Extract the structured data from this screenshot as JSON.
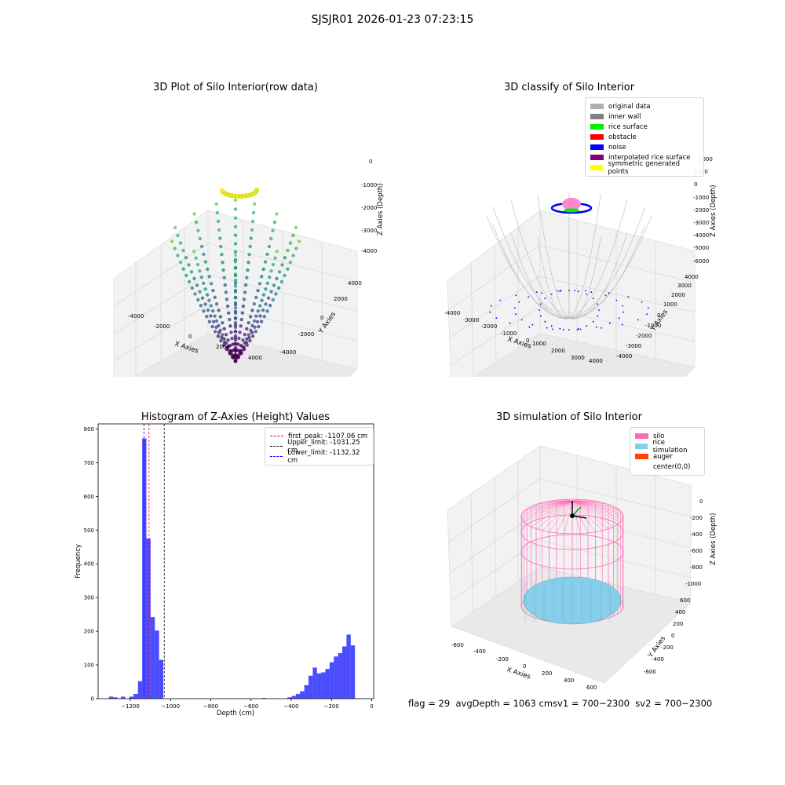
{
  "suptitle": "SJSJR01 2026-01-23 07:23:15",
  "panels": {
    "raw": {
      "title": "3D Plot of Silo Interior(row data)",
      "xlabel": "X Axies",
      "ylabel": "Y Axies",
      "zlabel": "Z Axies (Depth)",
      "xticks": [
        "-4000",
        "-2000",
        "0",
        "2000",
        "4000"
      ],
      "yticks": [
        "-4000",
        "-2000",
        "0",
        "2000",
        "4000"
      ],
      "zticks": [
        "0",
        "-1000",
        "-2000",
        "-3000",
        "-4000"
      ]
    },
    "classify": {
      "title": "3D classify of Silo Interior",
      "xlabel": "X Axies",
      "ylabel": "Y Axies",
      "zlabel": "Z Axies (Depth)",
      "xticks": [
        "-4000",
        "-3000",
        "-2000",
        "-1000",
        "0",
        "1000",
        "2000",
        "3000",
        "4000"
      ],
      "yticks": [
        "-4000",
        "-3000",
        "-2000",
        "-1000",
        "0",
        "1000",
        "2000",
        "3000",
        "4000"
      ],
      "zticks": [
        "2000",
        "1000",
        "0",
        "-1000",
        "-2000",
        "-3000",
        "-4000",
        "-5000",
        "-6000"
      ],
      "legend": [
        {
          "label": "original data",
          "color": "#b0b0b0"
        },
        {
          "label": "inner wall",
          "color": "#808080"
        },
        {
          "label": "rice surface",
          "color": "#00ee00"
        },
        {
          "label": "obstacle",
          "color": "#ff0000"
        },
        {
          "label": "noise",
          "color": "#0000ff"
        },
        {
          "label": "interpolated rice surface",
          "color": "#800080"
        },
        {
          "label": "symmetric generated points",
          "color": "#ffff00"
        }
      ]
    },
    "simulation": {
      "title": "3D simulation of Silo Interior",
      "xlabel": "X Axies",
      "ylabel": "Y Axies",
      "zlabel": "Z Axies (Depth)",
      "xticks": [
        "-600",
        "-400",
        "-200",
        "0",
        "200",
        "400",
        "600"
      ],
      "yticks": [
        "-600",
        "-400",
        "-200",
        "0",
        "200",
        "400",
        "600"
      ],
      "zticks": [
        "0",
        "-200",
        "-400",
        "-600",
        "-800",
        "-1000"
      ],
      "legend": [
        {
          "label": "silo",
          "color": "#ff69b4"
        },
        {
          "label": "rice simulation",
          "color": "#87ceeb"
        },
        {
          "label": "auger",
          "color": "#ff4500"
        },
        {
          "label": "center(0,0)",
          "color": ""
        }
      ]
    }
  },
  "chart_data": [
    {
      "type": "histogram",
      "title": "Histogram of Z-Axies (Height) Values",
      "xlabel": "Depth (cm)",
      "ylabel": "Frequency",
      "xlim": [
        -1360,
        10
      ],
      "ylim": [
        0,
        815
      ],
      "xticks": [
        -1200,
        -1000,
        -800,
        -600,
        -400,
        -200,
        0
      ],
      "yticks": [
        0,
        100,
        200,
        300,
        400,
        500,
        600,
        700,
        800
      ],
      "bar_color": "#0000ff",
      "bars": [
        {
          "x0": -1306,
          "x1": -1285,
          "value": 6
        },
        {
          "x0": -1285,
          "x1": -1264,
          "value": 4
        },
        {
          "x0": -1247,
          "x1": -1226,
          "value": 6
        },
        {
          "x0": -1205,
          "x1": -1184,
          "value": 6
        },
        {
          "x0": -1184,
          "x1": -1162,
          "value": 14
        },
        {
          "x0": -1162,
          "x1": -1141,
          "value": 52
        },
        {
          "x0": -1141,
          "x1": -1120,
          "value": 772
        },
        {
          "x0": -1120,
          "x1": -1099,
          "value": 475
        },
        {
          "x0": -1099,
          "x1": -1078,
          "value": 242
        },
        {
          "x0": -1078,
          "x1": -1057,
          "value": 202
        },
        {
          "x0": -1057,
          "x1": -1036,
          "value": 115
        },
        {
          "x0": -545,
          "x1": -524,
          "value": 2
        },
        {
          "x0": -419,
          "x1": -398,
          "value": 4
        },
        {
          "x0": -398,
          "x1": -377,
          "value": 8
        },
        {
          "x0": -377,
          "x1": -356,
          "value": 14
        },
        {
          "x0": -356,
          "x1": -335,
          "value": 22
        },
        {
          "x0": -335,
          "x1": -314,
          "value": 40
        },
        {
          "x0": -314,
          "x1": -293,
          "value": 68
        },
        {
          "x0": -293,
          "x1": -272,
          "value": 92
        },
        {
          "x0": -272,
          "x1": -251,
          "value": 75
        },
        {
          "x0": -251,
          "x1": -230,
          "value": 78
        },
        {
          "x0": -230,
          "x1": -209,
          "value": 88
        },
        {
          "x0": -209,
          "x1": -188,
          "value": 108
        },
        {
          "x0": -188,
          "x1": -167,
          "value": 125
        },
        {
          "x0": -167,
          "x1": -146,
          "value": 135
        },
        {
          "x0": -146,
          "x1": -125,
          "value": 155
        },
        {
          "x0": -125,
          "x1": -104,
          "value": 190
        },
        {
          "x0": -104,
          "x1": -83,
          "value": 158
        }
      ],
      "lines": [
        {
          "label": "first_peak: -1107.06 cm",
          "x": -1107.06,
          "color": "#ff0000"
        },
        {
          "label": "Upper_limit: -1031.25 cm",
          "x": -1031.25,
          "color": "#000000"
        },
        {
          "label": "Lower_limit: -1132.32 cm",
          "x": -1132.32,
          "color": "#0000ff"
        }
      ]
    }
  ],
  "status": {
    "flag": "flag = 29",
    "avg": "avgDepth = 1063 cm",
    "sv1": "sv1 = 700~2300",
    "sv2": "sv2 = 700~2300"
  }
}
